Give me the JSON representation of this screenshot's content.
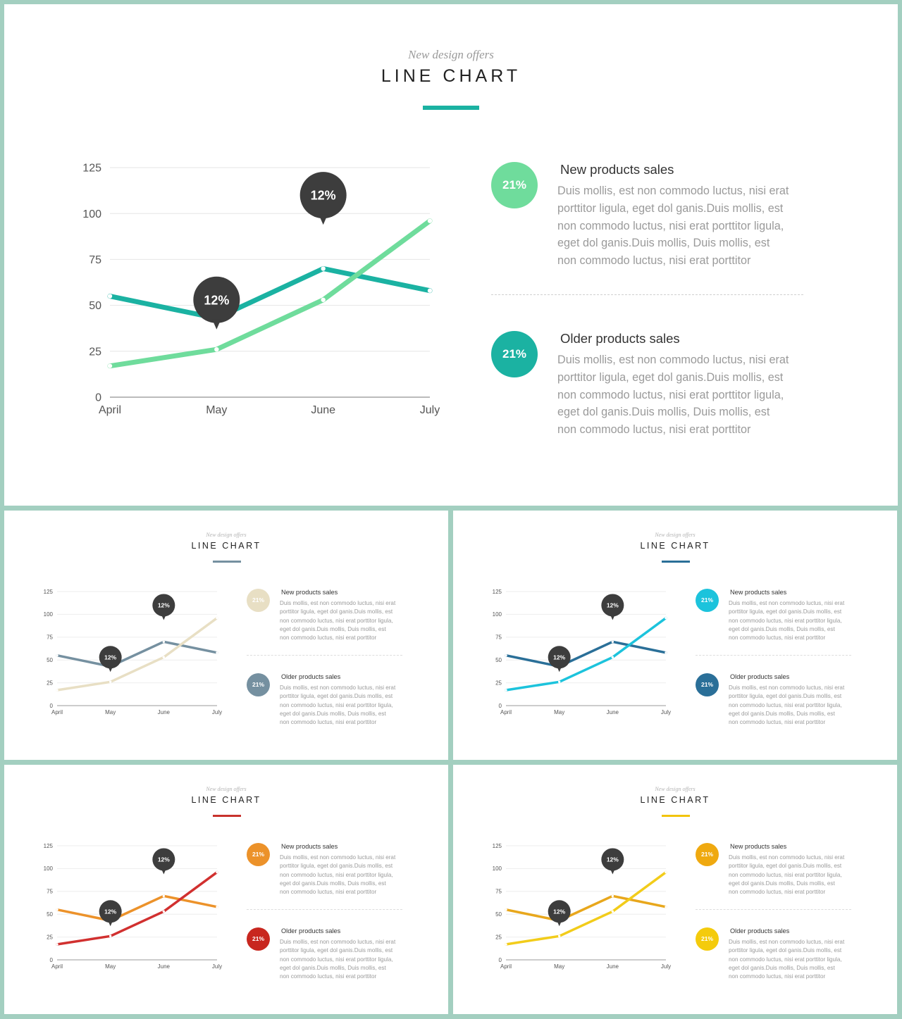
{
  "slides": [
    {
      "subtitle": "New design offers",
      "title": "LINE CHART",
      "accent": "#1bb2a2",
      "series_colors": [
        "#1bb2a2",
        "#6fdc9c"
      ],
      "badge_colors": [
        "#6fdc9c",
        "#1bb2a2"
      ],
      "items": [
        {
          "badge": "21%",
          "heading": "New products sales",
          "body": "Duis mollis, est non commodo luctus, nisi erat porttitor ligula, eget dol ganis.Duis mollis, est non commodo luctus, nisi erat porttitor ligula, eget dol ganis.Duis mollis, Duis mollis, est non commodo luctus, nisi erat porttitor"
        },
        {
          "badge": "21%",
          "heading": "Older products sales",
          "body": "Duis mollis, est non commodo luctus, nisi erat porttitor ligula, eget dol ganis.Duis mollis, est non commodo luctus, nisi erat porttitor ligula, eget dol ganis.Duis mollis, Duis mollis, est non commodo luctus, nisi erat porttitor"
        }
      ]
    },
    {
      "subtitle": "New design offers",
      "title": "LINE CHART",
      "accent": "#7590a0",
      "series_colors": [
        "#7590a0",
        "#e8dfc4"
      ],
      "badge_colors": [
        "#e8dfc4",
        "#7590a0"
      ],
      "items": [
        {
          "badge": "21%",
          "heading": "New products sales",
          "body": "Duis mollis, est non commodo luctus, nisi erat porttitor ligula, eget dol ganis.Duis mollis, est non commodo luctus, nisi erat porttitor ligula, eget dol ganis.Duis mollis, Duis mollis, est non commodo luctus, nisi erat porttitor"
        },
        {
          "badge": "21%",
          "heading": "Older products sales",
          "body": "Duis mollis, est non commodo luctus, nisi erat porttitor ligula, eget dol ganis.Duis mollis, est non commodo luctus, nisi erat porttitor ligula, eget dol ganis.Duis mollis, Duis mollis, est non commodo luctus, nisi erat porttitor"
        }
      ]
    },
    {
      "subtitle": "New design offers",
      "title": "LINE CHART",
      "accent": "#2a6f98",
      "series_colors": [
        "#2a6f98",
        "#1cc3dc"
      ],
      "badge_colors": [
        "#1cc3dc",
        "#2a6f98"
      ],
      "items": [
        {
          "badge": "21%",
          "heading": "New products sales",
          "body": "Duis mollis, est non commodo luctus, nisi erat porttitor ligula, eget dol ganis.Duis mollis, est non commodo luctus, nisi erat porttitor ligula, eget dol ganis.Duis mollis, Duis mollis, est non commodo luctus, nisi erat porttitor"
        },
        {
          "badge": "21%",
          "heading": "Older products sales",
          "body": "Duis mollis, est non commodo luctus, nisi erat porttitor ligula, eget dol ganis.Duis mollis, est non commodo luctus, nisi erat porttitor ligula, eget dol ganis.Duis mollis, Duis mollis, est non commodo luctus, nisi erat porttitor"
        }
      ]
    },
    {
      "subtitle": "New design offers",
      "title": "LINE CHART",
      "accent": "#c8322c",
      "series_colors": [
        "#ec922a",
        "#d1302f"
      ],
      "badge_colors": [
        "#ec922a",
        "#c8271f"
      ],
      "items": [
        {
          "badge": "21%",
          "heading": "New products sales",
          "body": "Duis mollis, est non commodo luctus, nisi erat porttitor ligula, eget dol ganis.Duis mollis, est non commodo luctus, nisi erat porttitor ligula, eget dol ganis.Duis mollis, Duis mollis, est non commodo luctus, nisi erat porttitor"
        },
        {
          "badge": "21%",
          "heading": "Older products sales",
          "body": "Duis mollis, est non commodo luctus, nisi erat porttitor ligula, eget dol ganis.Duis mollis, est non commodo luctus, nisi erat porttitor ligula, eget dol ganis.Duis mollis, Duis mollis, est non commodo luctus, nisi erat porttitor"
        }
      ]
    },
    {
      "subtitle": "New design offers",
      "title": "LINE CHART",
      "accent": "#f2c40c",
      "series_colors": [
        "#e8a71c",
        "#f2cc1a"
      ],
      "badge_colors": [
        "#efa910",
        "#f4cb0c"
      ],
      "items": [
        {
          "badge": "21%",
          "heading": "New products sales",
          "body": "Duis mollis, est non commodo luctus, nisi erat porttitor ligula, eget dol ganis.Duis mollis, est non commodo luctus, nisi erat porttitor ligula, eget dol ganis.Duis mollis, Duis mollis, est non commodo luctus, nisi erat porttitor"
        },
        {
          "badge": "21%",
          "heading": "Older products sales",
          "body": "Duis mollis, est non commodo luctus, nisi erat porttitor ligula, eget dol ganis.Duis mollis, est non commodo luctus, nisi erat porttitor ligula, eget dol ganis.Duis mollis, Duis mollis, est non commodo luctus, nisi erat porttitor"
        }
      ]
    }
  ],
  "chart_data": [
    {
      "type": "line",
      "x": [
        "April",
        "May",
        "June",
        "July"
      ],
      "ylim": [
        0,
        125
      ],
      "yticks": [
        0,
        25,
        50,
        75,
        100,
        125
      ],
      "grid": true,
      "series": [
        {
          "values": [
            55,
            43,
            70,
            58
          ]
        },
        {
          "values": [
            17,
            26,
            53,
            96
          ]
        }
      ],
      "annotations": [
        {
          "label": "12%",
          "x": "May",
          "y": 53
        },
        {
          "label": "12%",
          "x": "June",
          "y": 110
        }
      ]
    },
    {
      "type": "line",
      "x": [
        "April",
        "May",
        "June",
        "July"
      ],
      "ylim": [
        0,
        125
      ],
      "yticks": [
        0,
        25,
        50,
        75,
        100,
        125
      ],
      "grid": true,
      "series": [
        {
          "values": [
            55,
            43,
            70,
            58
          ]
        },
        {
          "values": [
            17,
            26,
            53,
            96
          ]
        }
      ],
      "annotations": [
        {
          "label": "12%",
          "x": "May",
          "y": 53
        },
        {
          "label": "12%",
          "x": "June",
          "y": 110
        }
      ]
    },
    {
      "type": "line",
      "x": [
        "April",
        "May",
        "June",
        "July"
      ],
      "ylim": [
        0,
        125
      ],
      "yticks": [
        0,
        25,
        50,
        75,
        100,
        125
      ],
      "grid": true,
      "series": [
        {
          "values": [
            55,
            43,
            70,
            58
          ]
        },
        {
          "values": [
            17,
            26,
            53,
            96
          ]
        }
      ],
      "annotations": [
        {
          "label": "12%",
          "x": "May",
          "y": 53
        },
        {
          "label": "12%",
          "x": "June",
          "y": 110
        }
      ]
    },
    {
      "type": "line",
      "x": [
        "April",
        "May",
        "June",
        "July"
      ],
      "ylim": [
        0,
        125
      ],
      "yticks": [
        0,
        25,
        50,
        75,
        100,
        125
      ],
      "grid": true,
      "series": [
        {
          "values": [
            55,
            43,
            70,
            58
          ]
        },
        {
          "values": [
            17,
            26,
            53,
            96
          ]
        }
      ],
      "annotations": [
        {
          "label": "12%",
          "x": "May",
          "y": 53
        },
        {
          "label": "12%",
          "x": "June",
          "y": 110
        }
      ]
    },
    {
      "type": "line",
      "x": [
        "April",
        "May",
        "June",
        "July"
      ],
      "ylim": [
        0,
        125
      ],
      "yticks": [
        0,
        25,
        50,
        75,
        100,
        125
      ],
      "grid": true,
      "series": [
        {
          "values": [
            55,
            43,
            70,
            58
          ]
        },
        {
          "values": [
            17,
            26,
            53,
            96
          ]
        }
      ],
      "annotations": [
        {
          "label": "12%",
          "x": "May",
          "y": 53
        },
        {
          "label": "12%",
          "x": "June",
          "y": 110
        }
      ]
    }
  ]
}
